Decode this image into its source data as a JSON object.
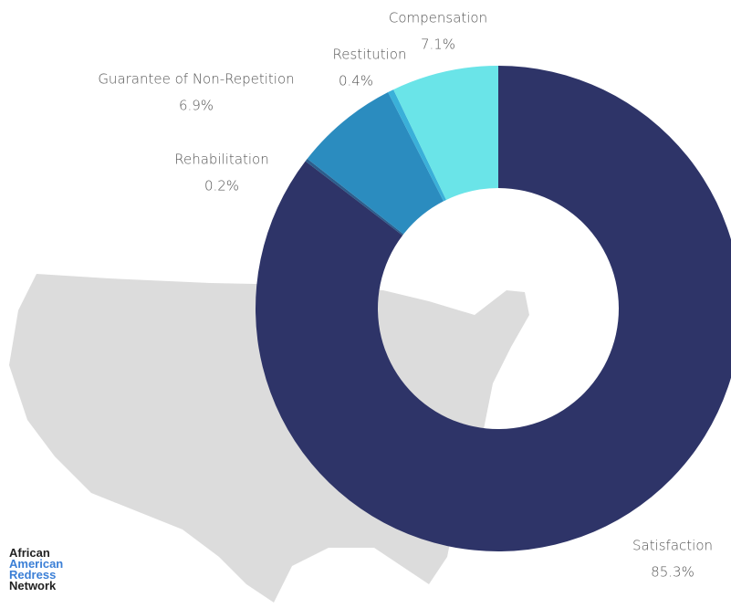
{
  "chart_data": {
    "type": "donut",
    "categories": [
      "Satisfaction",
      "Rehabilitation",
      "Guarantee of Non-Repetition",
      "Restitution",
      "Compensation"
    ],
    "values": [
      85.3,
      0.2,
      6.9,
      0.4,
      7.1
    ],
    "value_labels": [
      "85.3%",
      "0.2%",
      "6.9%",
      "0.4%",
      "7.1%"
    ],
    "colors": [
      "#2e3468",
      "#2b5d8c",
      "#2b8cbf",
      "#3ab0d9",
      "#6ae4e8"
    ]
  },
  "logo": {
    "lines": [
      "African",
      "American",
      "Redress",
      "Network"
    ]
  }
}
